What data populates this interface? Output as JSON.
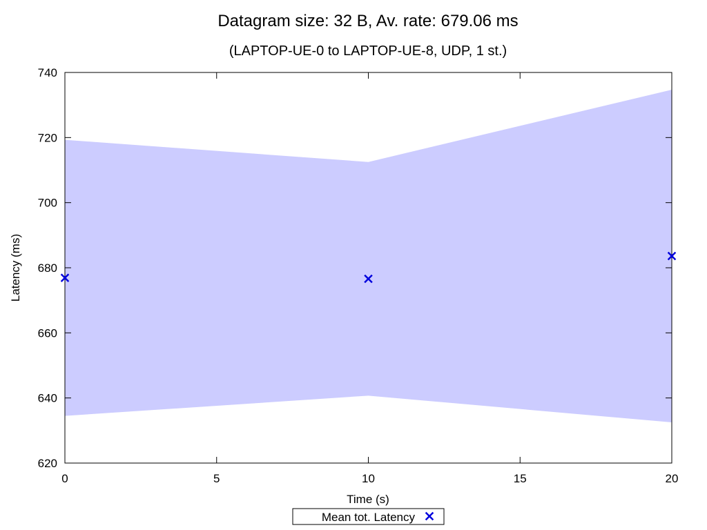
{
  "chart_data": {
    "type": "line",
    "title": "Datagram size: 32 B, Av. rate: 679.06 ms",
    "subtitle": "(LAPTOP-UE-0 to LAPTOP-UE-8, UDP, 1 st.)",
    "xlabel": "Time (s)",
    "ylabel": "Latency (ms)",
    "xlim": [
      0,
      20
    ],
    "ylim": [
      620,
      740
    ],
    "xticks": [
      0,
      5,
      10,
      15,
      20
    ],
    "yticks": [
      620,
      640,
      660,
      680,
      700,
      720,
      740
    ],
    "grid": false,
    "legend_position": "bottom-center",
    "band": {
      "x": [
        0,
        10,
        20
      ],
      "lower": [
        634.5,
        640.7,
        632.5
      ],
      "upper": [
        719.3,
        712.5,
        734.7
      ],
      "color": "#ccccff"
    },
    "series": [
      {
        "name": "Mean tot. Latency",
        "x": [
          0,
          10,
          20
        ],
        "y": [
          676.9,
          676.6,
          683.6
        ],
        "marker": "x",
        "color": "#0000dd"
      }
    ]
  }
}
